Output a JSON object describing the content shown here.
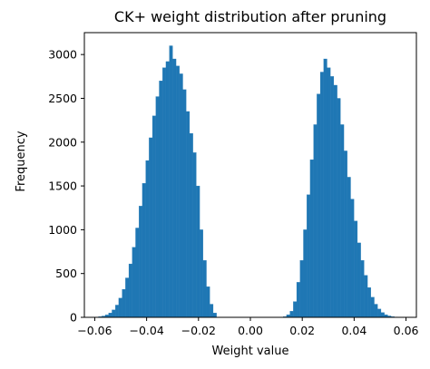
{
  "chart_data": {
    "type": "bar",
    "title": "CK+ weight distribution after pruning",
    "xlabel": "Weight value",
    "ylabel": "Frequency",
    "xlim": [
      -0.064,
      0.064
    ],
    "ylim": [
      0,
      3250
    ],
    "xticks": [
      -0.06,
      -0.04,
      -0.02,
      0.0,
      0.02,
      0.04,
      0.06
    ],
    "xtick_labels": [
      "−0.06",
      "−0.04",
      "−0.02",
      "0.00",
      "0.02",
      "0.04",
      "0.06"
    ],
    "yticks": [
      0,
      500,
      1000,
      1500,
      2000,
      2500,
      3000
    ],
    "ytick_labels": [
      "0",
      "500",
      "1000",
      "1500",
      "2000",
      "2500",
      "3000"
    ],
    "grid": false,
    "bar_color": "#1f77b4",
    "bin_width": 0.0013,
    "bin_centers": [
      -0.0592,
      -0.0579,
      -0.0566,
      -0.0553,
      -0.054,
      -0.0527,
      -0.0514,
      -0.0501,
      -0.0488,
      -0.0475,
      -0.0462,
      -0.0449,
      -0.0436,
      -0.0423,
      -0.041,
      -0.0397,
      -0.0384,
      -0.0371,
      -0.0358,
      -0.0345,
      -0.0332,
      -0.0319,
      -0.0306,
      -0.0293,
      -0.028,
      -0.0267,
      -0.0254,
      -0.0241,
      -0.0228,
      -0.0215,
      -0.0202,
      -0.0189,
      -0.0176,
      -0.0163,
      -0.015,
      -0.0137,
      0.0133,
      0.0146,
      0.0159,
      0.0172,
      0.0185,
      0.0198,
      0.0211,
      0.0224,
      0.0237,
      0.025,
      0.0263,
      0.0276,
      0.0289,
      0.0302,
      0.0315,
      0.0328,
      0.0341,
      0.0354,
      0.0367,
      0.038,
      0.0393,
      0.0406,
      0.0419,
      0.0432,
      0.0445,
      0.0458,
      0.0471,
      0.0484,
      0.0497,
      0.051,
      0.0523,
      0.0536,
      0.0549,
      0.0562,
      0.0575
    ],
    "values": [
      3,
      8,
      15,
      28,
      50,
      85,
      140,
      220,
      320,
      450,
      610,
      800,
      1020,
      1270,
      1530,
      1790,
      2050,
      2300,
      2520,
      2700,
      2850,
      2920,
      3100,
      2950,
      2870,
      2780,
      2600,
      2350,
      2100,
      1880,
      1500,
      1000,
      650,
      350,
      150,
      50,
      8,
      30,
      70,
      180,
      400,
      650,
      1000,
      1400,
      1800,
      2200,
      2550,
      2800,
      2950,
      2850,
      2750,
      2650,
      2500,
      2200,
      1900,
      1600,
      1350,
      1100,
      850,
      650,
      480,
      340,
      230,
      150,
      95,
      55,
      30,
      16,
      8,
      4,
      2
    ]
  }
}
